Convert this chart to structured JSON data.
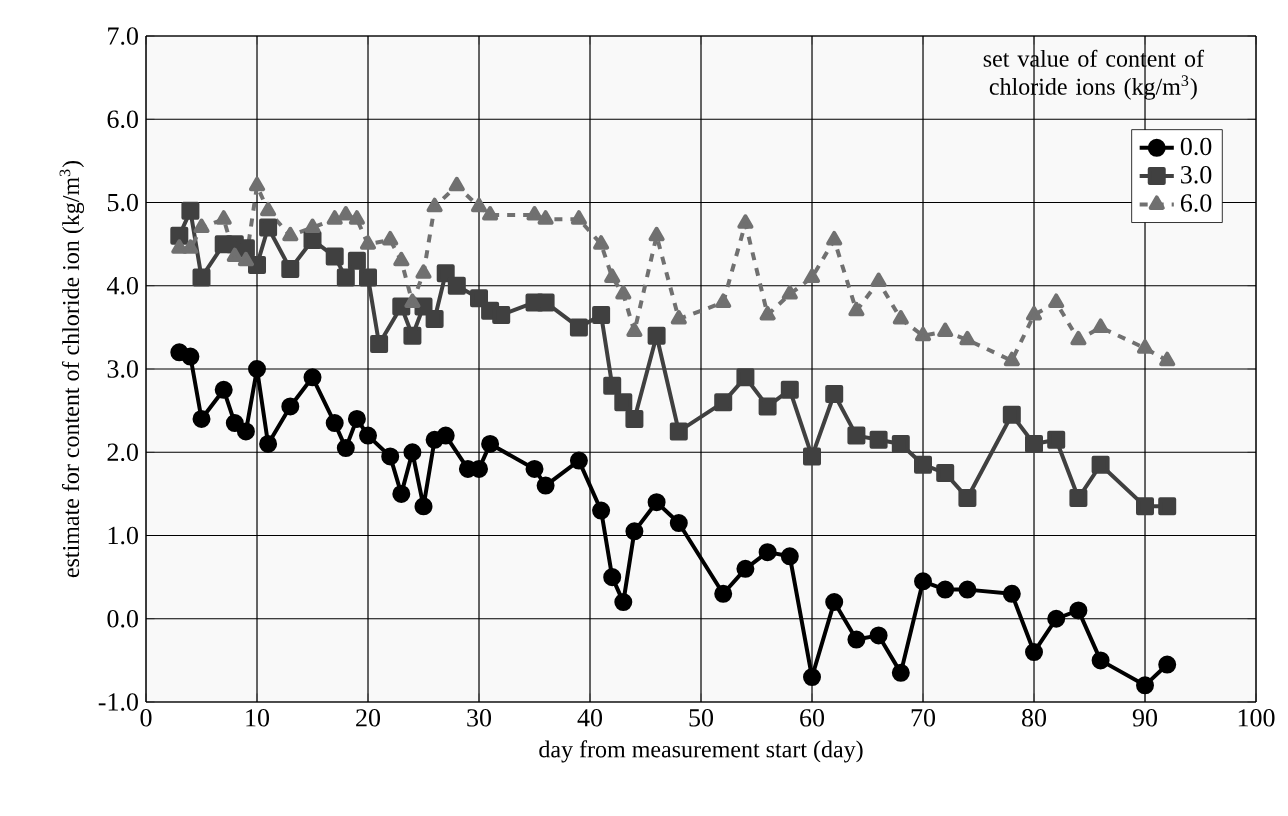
{
  "chart_data": {
    "type": "line",
    "xlabel": "day from measurement start (day)",
    "ylabel": "estimate for content of chloride ion  (kg/m$^{3}$)",
    "legend_title": "set value of content of chloride ions  (kg/m$^{3}$)",
    "xlim": [
      0,
      100
    ],
    "ylim": [
      -1,
      7
    ],
    "xticks": [
      0,
      10,
      20,
      30,
      40,
      50,
      60,
      70,
      80,
      90,
      100
    ],
    "yticks": [
      {
        "value": -1,
        "label": "-1.0"
      },
      {
        "value": 0,
        "label": "0.0"
      },
      {
        "value": 1,
        "label": "1.0"
      },
      {
        "value": 2,
        "label": "2.0"
      },
      {
        "value": 3,
        "label": "3.0"
      },
      {
        "value": 4,
        "label": "4.0"
      },
      {
        "value": 5,
        "label": "5.0"
      },
      {
        "value": 6,
        "label": "6.0"
      },
      {
        "value": 7,
        "label": "7.0"
      }
    ],
    "grid": true,
    "legend": "top right",
    "series": [
      {
        "name": "0.0",
        "color": "#000000",
        "marker": "circle",
        "line_style": "solid",
        "x": [
          3,
          4,
          5,
          7,
          8,
          9,
          10,
          11,
          13,
          15,
          17,
          18,
          19,
          20,
          22,
          23,
          24,
          25,
          26,
          27,
          29,
          30,
          31,
          35,
          36,
          39,
          41,
          42,
          43,
          44,
          46,
          48,
          52,
          54,
          56,
          58,
          60,
          62,
          64,
          66,
          68,
          70,
          72,
          74,
          78,
          80,
          82,
          84,
          86,
          90,
          92
        ],
        "values": [
          3.2,
          3.15,
          2.4,
          2.75,
          2.35,
          2.25,
          3.0,
          2.1,
          2.55,
          2.9,
          2.35,
          2.05,
          2.4,
          2.2,
          1.95,
          1.5,
          2.0,
          1.35,
          2.15,
          2.2,
          1.8,
          1.8,
          2.1,
          1.8,
          1.6,
          1.9,
          1.3,
          0.5,
          0.2,
          1.05,
          1.4,
          1.15,
          0.3,
          0.6,
          0.8,
          0.75,
          -0.7,
          0.2,
          -0.25,
          -0.2,
          -0.65,
          0.45,
          0.35,
          0.35,
          0.3,
          -0.4,
          0.0,
          0.1,
          -0.5,
          -0.8,
          -0.55
        ]
      },
      {
        "name": "3.0",
        "color": "#404040",
        "marker": "square",
        "line_style": "solid",
        "x": [
          3,
          4,
          5,
          7,
          8,
          9,
          10,
          11,
          13,
          15,
          17,
          18,
          19,
          20,
          21,
          23,
          24,
          25,
          26,
          27,
          28,
          30,
          31,
          32,
          35,
          36,
          39,
          41,
          42,
          43,
          44,
          46,
          48,
          52,
          54,
          56,
          58,
          60,
          62,
          64,
          66,
          68,
          70,
          72,
          74,
          78,
          80,
          82,
          84,
          86,
          90,
          92
        ],
        "values": [
          4.6,
          4.9,
          4.1,
          4.5,
          4.5,
          4.45,
          4.25,
          4.7,
          4.2,
          4.55,
          4.35,
          4.1,
          4.3,
          4.1,
          3.3,
          3.75,
          3.4,
          3.75,
          3.6,
          4.15,
          4.0,
          3.85,
          3.7,
          3.65,
          3.8,
          3.8,
          3.5,
          3.65,
          2.8,
          2.6,
          2.4,
          3.4,
          2.25,
          2.6,
          2.9,
          2.55,
          2.75,
          1.95,
          2.7,
          2.2,
          2.15,
          2.1,
          1.85,
          1.75,
          1.45,
          2.45,
          2.1,
          2.15,
          1.45,
          1.85,
          1.35,
          1.35
        ]
      },
      {
        "name": "6.0",
        "color": "#707070",
        "marker": "triangle",
        "line_style": "dashed",
        "x": [
          3,
          4,
          5,
          7,
          8,
          9,
          10,
          11,
          13,
          15,
          17,
          18,
          19,
          20,
          22,
          23,
          24,
          25,
          26,
          28,
          30,
          31,
          35,
          36,
          39,
          41,
          42,
          43,
          44,
          46,
          48,
          52,
          54,
          56,
          58,
          60,
          62,
          64,
          66,
          68,
          70,
          72,
          74,
          78,
          80,
          82,
          84,
          86,
          90,
          92
        ],
        "values": [
          4.45,
          4.45,
          4.7,
          4.8,
          4.35,
          4.3,
          5.2,
          4.9,
          4.6,
          4.7,
          4.8,
          4.85,
          4.8,
          4.5,
          4.55,
          4.3,
          3.8,
          4.15,
          4.95,
          5.2,
          4.95,
          4.85,
          4.85,
          4.8,
          4.8,
          4.5,
          4.1,
          3.9,
          3.45,
          4.6,
          3.6,
          3.8,
          4.75,
          3.65,
          3.9,
          4.1,
          4.55,
          3.7,
          4.05,
          3.6,
          3.4,
          3.45,
          3.35,
          3.1,
          3.65,
          3.8,
          3.35,
          3.5,
          3.25,
          3.1
        ]
      }
    ]
  }
}
